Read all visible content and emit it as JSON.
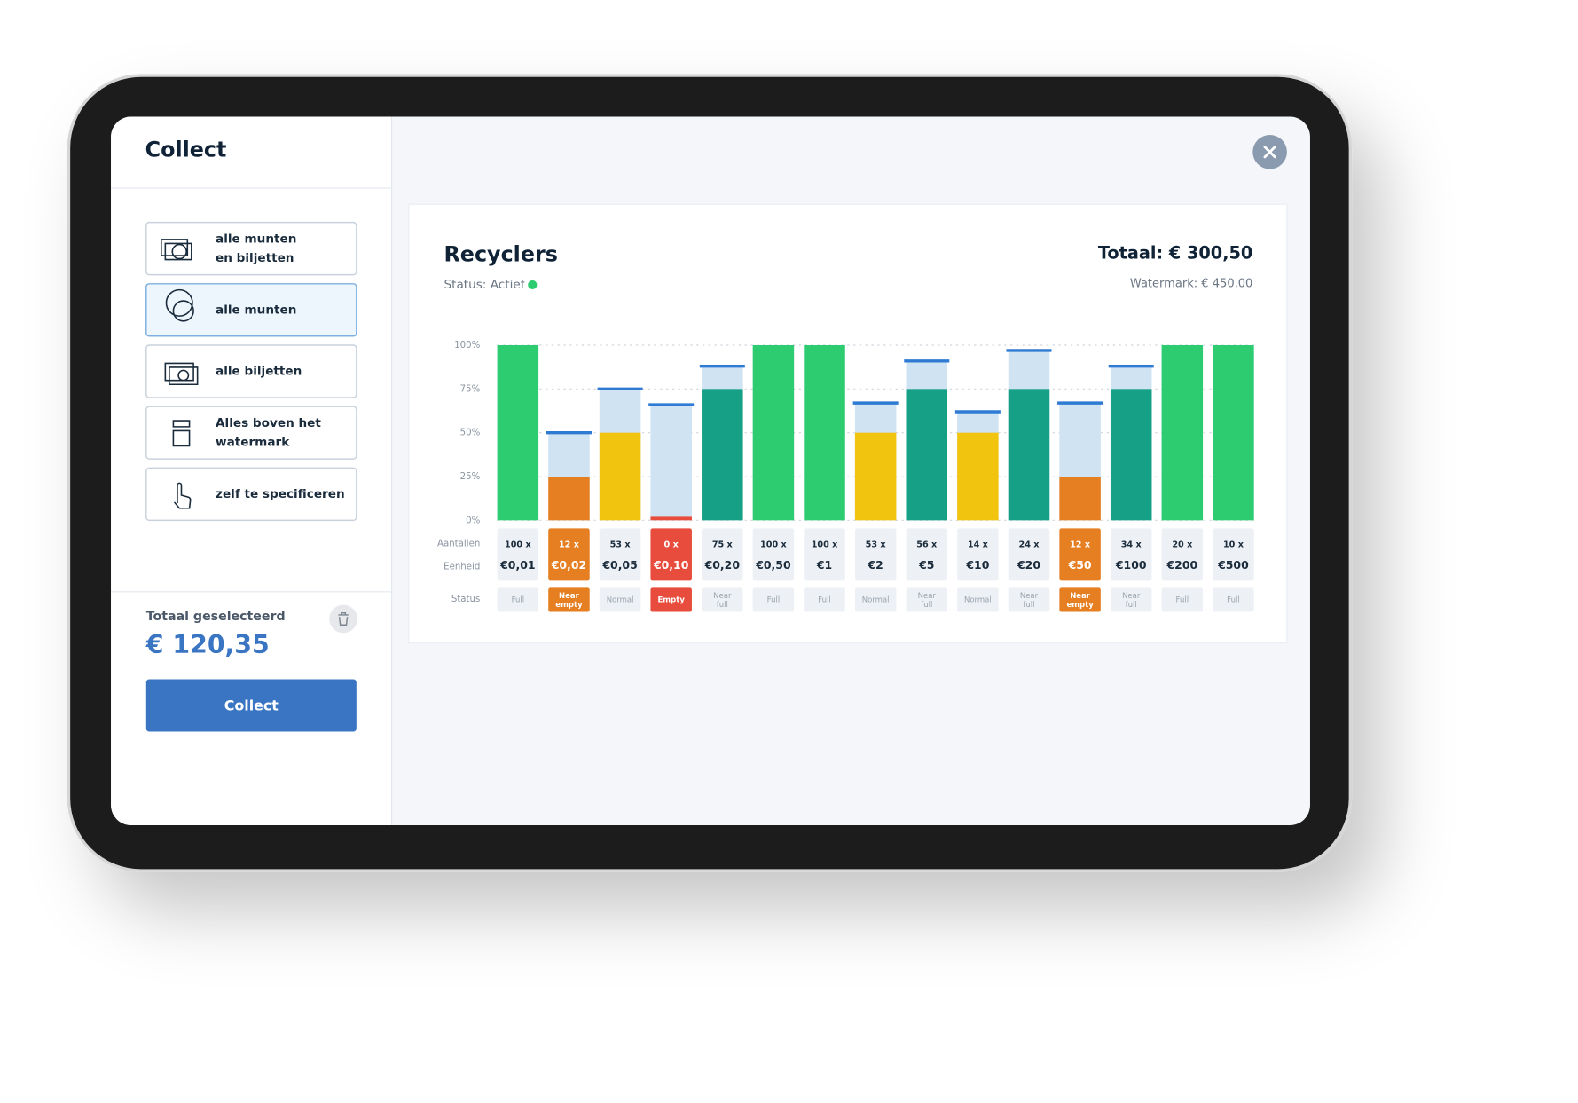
{
  "sidebar": {
    "title": "Collect",
    "options": [
      {
        "label": [
          "alle munten",
          "en biljetten"
        ]
      },
      {
        "label": [
          "alle munten"
        ]
      },
      {
        "label": [
          "alle biljetten"
        ]
      },
      {
        "label": [
          "Alles boven het",
          "watermark"
        ]
      },
      {
        "label": [
          "zelf te specificeren"
        ]
      }
    ],
    "total_label": "Totaal geselecteerd",
    "total_value": "€ 120,35",
    "button": "Collect"
  },
  "chart_data": {
    "type": "bar",
    "title": "Recyclers",
    "status": "Status: Actief",
    "total": "Totaal: € 300,50",
    "watermark_total": "Watermark: € 450,00",
    "row_labels": [
      "Aantallen",
      "Eenheid",
      "Status"
    ],
    "categories": [
      "€0,01",
      "€0,02",
      "€0,05",
      "€0,10",
      "€0,20",
      "€0,50",
      "€1",
      "€2",
      "€5",
      "€10",
      "€20",
      "€50",
      "€100",
      "€200",
      "€500"
    ],
    "counts": [
      "100 x",
      "12 x",
      "53 x",
      "0 x",
      "75 x",
      "100 x",
      "100 x",
      "53 x",
      "56 x",
      "14 x",
      "24 x",
      "12 x",
      "34 x",
      "20 x",
      "10 x"
    ],
    "statuses": [
      "Full",
      "Near empty",
      "Normal",
      "Empty",
      "Near full",
      "Full",
      "Full",
      "Normal",
      "Near full",
      "Normal",
      "Near full",
      "Near empty",
      "Near full",
      "Full",
      "Full"
    ],
    "values": [
      100,
      25,
      50,
      2,
      75,
      100,
      100,
      50,
      75,
      50,
      75,
      25,
      75,
      100,
      100
    ],
    "watermarks": [
      null,
      50,
      75,
      66,
      88,
      null,
      null,
      67,
      91,
      62,
      97,
      67,
      88,
      null,
      null
    ],
    "status_styles": {
      "Full": {
        "bar": "#2ecc71"
      },
      "Normal": {
        "bar": "#f1c40f"
      },
      "Near full": {
        "bar": "#16a085"
      },
      "Near empty": {
        "bar": "#e67e22",
        "cell": "#e67e22"
      },
      "Empty": {
        "bar": "#e74c3c",
        "cell": "#e74c3c"
      }
    },
    "watermark_color": "#2f7bd3",
    "watermark_fill": "#cfe3f3",
    "ylim": [
      0,
      100
    ],
    "yticks": [
      {
        "value": 0,
        "label": "0%"
      },
      {
        "value": 25,
        "label": "25%"
      },
      {
        "value": 50,
        "label": "50%"
      },
      {
        "value": 75,
        "label": "75%"
      },
      {
        "value": 100,
        "label": "100%"
      }
    ],
    "grid": true
  }
}
